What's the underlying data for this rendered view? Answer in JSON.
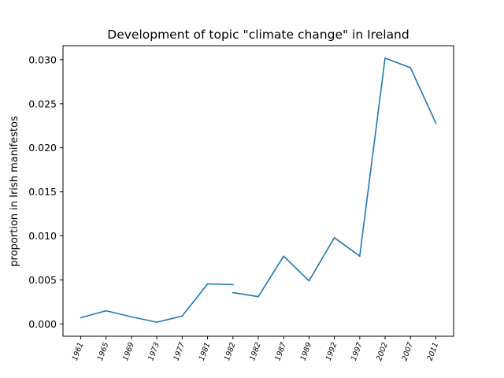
{
  "chart_data": {
    "type": "line",
    "title": "Development of topic \"climate change\" in Ireland",
    "xlabel": "",
    "ylabel": "proportion in Irish manifestos",
    "categories": [
      "1961",
      "1965",
      "1969",
      "1973",
      "1977",
      "1981",
      "1982",
      "1982",
      "1987",
      "1989",
      "1992",
      "1997",
      "2002",
      "2007",
      "2011"
    ],
    "series": [
      {
        "color": "#1f77b4",
        "segments": [
          {
            "x": [
              0,
              1,
              2,
              3,
              4,
              5,
              6
            ],
            "y": [
              0.0007,
              0.0015,
              0.0008,
              0.0002,
              0.0009,
              0.00455,
              0.00447
            ]
          },
          {
            "x": [
              6,
              7,
              8,
              9,
              10,
              11,
              11
            ],
            "y": [
              0.00355,
              0.0031,
              0.0077,
              0.0049,
              0.0098,
              0.0077,
              0.0077
            ]
          },
          {
            "x": [
              11,
              12,
              13,
              14
            ],
            "y": [
              0.0077,
              0.0302,
              0.0291,
              0.0228
            ]
          }
        ]
      }
    ],
    "yticks": [
      "0.000",
      "0.005",
      "0.010",
      "0.015",
      "0.020",
      "0.025",
      "0.030"
    ],
    "ylim": [
      -0.0014,
      0.0316
    ],
    "grid": false,
    "legend": "none"
  }
}
